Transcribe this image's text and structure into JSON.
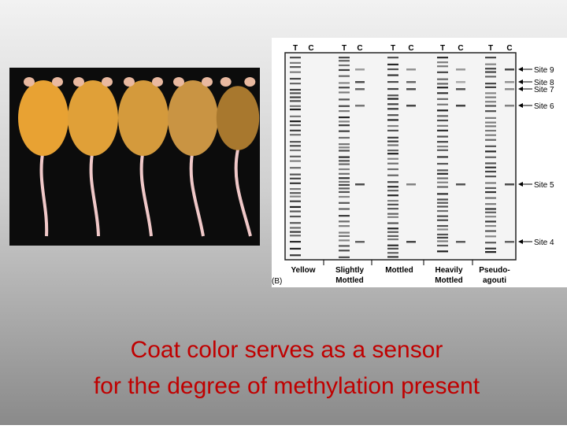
{
  "slide": {
    "caption": [
      "Coat color serves as a sensor",
      "for the degree of methylation present"
    ],
    "gel": {
      "panel_label": "(B)",
      "lane_labels": [
        "T",
        "C",
        "T",
        "C",
        "T",
        "C",
        "T",
        "C",
        "T",
        "C"
      ],
      "site_labels": [
        "Site 9",
        "Site 8",
        "Site 7",
        "Site 6",
        "Site 5",
        "Site 4"
      ],
      "groups": [
        {
          "lines": [
            "Yellow"
          ]
        },
        {
          "lines": [
            "Slightly",
            "Mottled"
          ]
        },
        {
          "lines": [
            "Mottled"
          ]
        },
        {
          "lines": [
            "Heavily",
            "Mottled"
          ]
        },
        {
          "lines": [
            "Pseudo-",
            "agouti"
          ]
        }
      ]
    }
  }
}
